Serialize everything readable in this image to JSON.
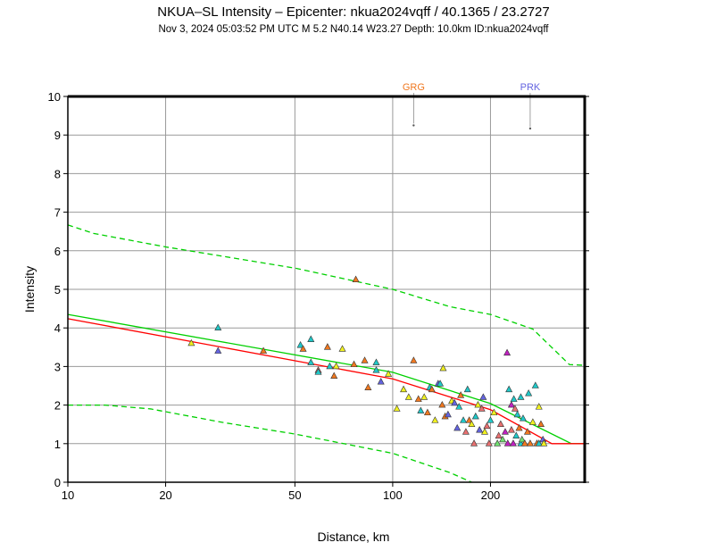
{
  "chart_data": {
    "type": "scatter",
    "title": "NKUA–SL Intensity –  Epicenter: nkua2024vqff / 40.1365 / 23.2727",
    "subtitle": "Nov  3, 2024 05:03:52 PM UTC   M 5.2   N40.14 W23.27   Depth: 10.0km   ID:nkua2024vqff",
    "xlabel": "Distance, km",
    "ylabel": "Intensity",
    "xscale": "log",
    "xlim": [
      10,
      390
    ],
    "ylim": [
      0,
      10
    ],
    "xticks": [
      10,
      20,
      50,
      100,
      200
    ],
    "yticks": [
      0,
      1,
      2,
      3,
      4,
      5,
      6,
      7,
      8,
      9,
      10
    ],
    "grid": true,
    "colors": {
      "orange": "#f07820",
      "yellow": "#f0f020",
      "cyan": "#20c8c8",
      "blue": "#6464e0",
      "pink": "#e87070",
      "purple": "#c020c0",
      "green": "#70e070"
    },
    "lines": [
      {
        "name": "ipe-median",
        "color": "#00d000",
        "style": "solid",
        "x": [
          10,
          100,
          200,
          355,
          390
        ],
        "y": [
          4.35,
          2.85,
          2.04,
          1.0,
          1.0
        ]
      },
      {
        "name": "ipe-bias-corrected",
        "color": "#ff0000",
        "style": "solid",
        "x": [
          10,
          100,
          200,
          309,
          390
        ],
        "y": [
          4.24,
          2.68,
          1.88,
          1.0,
          1.0
        ]
      },
      {
        "name": "upper-bound",
        "color": "#00d000",
        "style": "dashed",
        "x": [
          10,
          12,
          20,
          50,
          100,
          150,
          200,
          270,
          350,
          390
        ],
        "y": [
          6.67,
          6.45,
          6.1,
          5.55,
          5.0,
          4.55,
          4.35,
          3.97,
          3.05,
          3.03
        ]
      },
      {
        "name": "lower-bound",
        "color": "#00d000",
        "style": "dashed",
        "x": [
          10,
          13,
          18,
          30,
          50,
          100,
          150,
          175
        ],
        "y": [
          2.0,
          2.0,
          1.9,
          1.55,
          1.25,
          0.75,
          0.25,
          0.0
        ]
      }
    ],
    "stations": [
      {
        "label": "GRG",
        "x": 116,
        "y": 9.25,
        "color": "#f07820"
      },
      {
        "label": "PRK",
        "x": 265,
        "y": 9.17,
        "color": "#6464e0"
      }
    ],
    "points": [
      [
        24,
        3.6,
        "yellow"
      ],
      [
        29,
        4.0,
        "cyan"
      ],
      [
        29,
        3.4,
        "blue"
      ],
      [
        40,
        3.4,
        "orange"
      ],
      [
        52,
        3.55,
        "cyan"
      ],
      [
        53,
        3.45,
        "orange"
      ],
      [
        56,
        3.7,
        "cyan"
      ],
      [
        56,
        3.1,
        "cyan"
      ],
      [
        59,
        2.9,
        "pink"
      ],
      [
        59,
        2.85,
        "cyan"
      ],
      [
        63,
        3.5,
        "orange"
      ],
      [
        64,
        3.0,
        "cyan"
      ],
      [
        66,
        2.75,
        "orange"
      ],
      [
        67,
        3.0,
        "yellow"
      ],
      [
        70,
        3.45,
        "yellow"
      ],
      [
        76,
        3.05,
        "orange"
      ],
      [
        77,
        5.25,
        "orange"
      ],
      [
        82,
        3.15,
        "orange"
      ],
      [
        84,
        2.45,
        "orange"
      ],
      [
        89,
        3.1,
        "cyan"
      ],
      [
        89,
        2.9,
        "cyan"
      ],
      [
        92,
        2.6,
        "blue"
      ],
      [
        97,
        2.8,
        "yellow"
      ],
      [
        103,
        1.9,
        "yellow"
      ],
      [
        108,
        2.4,
        "yellow"
      ],
      [
        112,
        2.2,
        "yellow"
      ],
      [
        116,
        3.15,
        "orange"
      ],
      [
        120,
        2.15,
        "orange"
      ],
      [
        122,
        1.85,
        "cyan"
      ],
      [
        125,
        2.2,
        "yellow"
      ],
      [
        128,
        1.8,
        "orange"
      ],
      [
        130,
        2.45,
        "cyan"
      ],
      [
        132,
        2.4,
        "orange"
      ],
      [
        135,
        1.6,
        "yellow"
      ],
      [
        138,
        2.55,
        "blue"
      ],
      [
        140,
        2.55,
        "cyan"
      ],
      [
        142,
        2.0,
        "orange"
      ],
      [
        143,
        2.95,
        "yellow"
      ],
      [
        145,
        1.7,
        "orange"
      ],
      [
        148,
        1.75,
        "blue"
      ],
      [
        152,
        2.1,
        "yellow"
      ],
      [
        155,
        2.05,
        "blue"
      ],
      [
        158,
        1.4,
        "blue"
      ],
      [
        160,
        1.95,
        "cyan"
      ],
      [
        162,
        2.25,
        "orange"
      ],
      [
        165,
        1.6,
        "cyan"
      ],
      [
        168,
        1.3,
        "pink"
      ],
      [
        170,
        2.4,
        "cyan"
      ],
      [
        172,
        1.6,
        "orange"
      ],
      [
        175,
        1.5,
        "yellow"
      ],
      [
        178,
        1.0,
        "pink"
      ],
      [
        180,
        1.7,
        "cyan"
      ],
      [
        183,
        2.0,
        "yellow"
      ],
      [
        185,
        1.35,
        "blue"
      ],
      [
        188,
        1.9,
        "pink"
      ],
      [
        190,
        2.2,
        "blue"
      ],
      [
        192,
        1.3,
        "yellow"
      ],
      [
        195,
        1.45,
        "pink"
      ],
      [
        198,
        1.0,
        "pink"
      ],
      [
        200,
        1.6,
        "cyan"
      ],
      [
        205,
        1.8,
        "yellow"
      ],
      [
        210,
        1.0,
        "green"
      ],
      [
        212,
        1.2,
        "pink"
      ],
      [
        215,
        1.5,
        "pink"
      ],
      [
        218,
        1.1,
        "green"
      ],
      [
        222,
        1.3,
        "purple"
      ],
      [
        225,
        3.35,
        "purple"
      ],
      [
        226,
        1.0,
        "purple"
      ],
      [
        228,
        2.4,
        "cyan"
      ],
      [
        232,
        1.35,
        "pink"
      ],
      [
        232,
        2.0,
        "purple"
      ],
      [
        235,
        1.0,
        "purple"
      ],
      [
        236,
        2.15,
        "cyan"
      ],
      [
        238,
        1.9,
        "pink"
      ],
      [
        240,
        1.2,
        "cyan"
      ],
      [
        242,
        1.75,
        "cyan"
      ],
      [
        245,
        1.4,
        "orange"
      ],
      [
        248,
        1.0,
        "cyan"
      ],
      [
        248,
        2.2,
        "cyan"
      ],
      [
        250,
        1.1,
        "green"
      ],
      [
        252,
        1.65,
        "cyan"
      ],
      [
        255,
        1.0,
        "orange"
      ],
      [
        260,
        1.3,
        "orange"
      ],
      [
        262,
        2.3,
        "cyan"
      ],
      [
        265,
        1.0,
        "orange"
      ],
      [
        270,
        1.55,
        "yellow"
      ],
      [
        275,
        2.5,
        "cyan"
      ],
      [
        278,
        1.0,
        "orange"
      ],
      [
        282,
        1.0,
        "cyan"
      ],
      [
        282,
        1.95,
        "yellow"
      ],
      [
        286,
        1.5,
        "orange"
      ],
      [
        290,
        1.1,
        "blue"
      ],
      [
        292,
        1.0,
        "yellow"
      ]
    ]
  }
}
